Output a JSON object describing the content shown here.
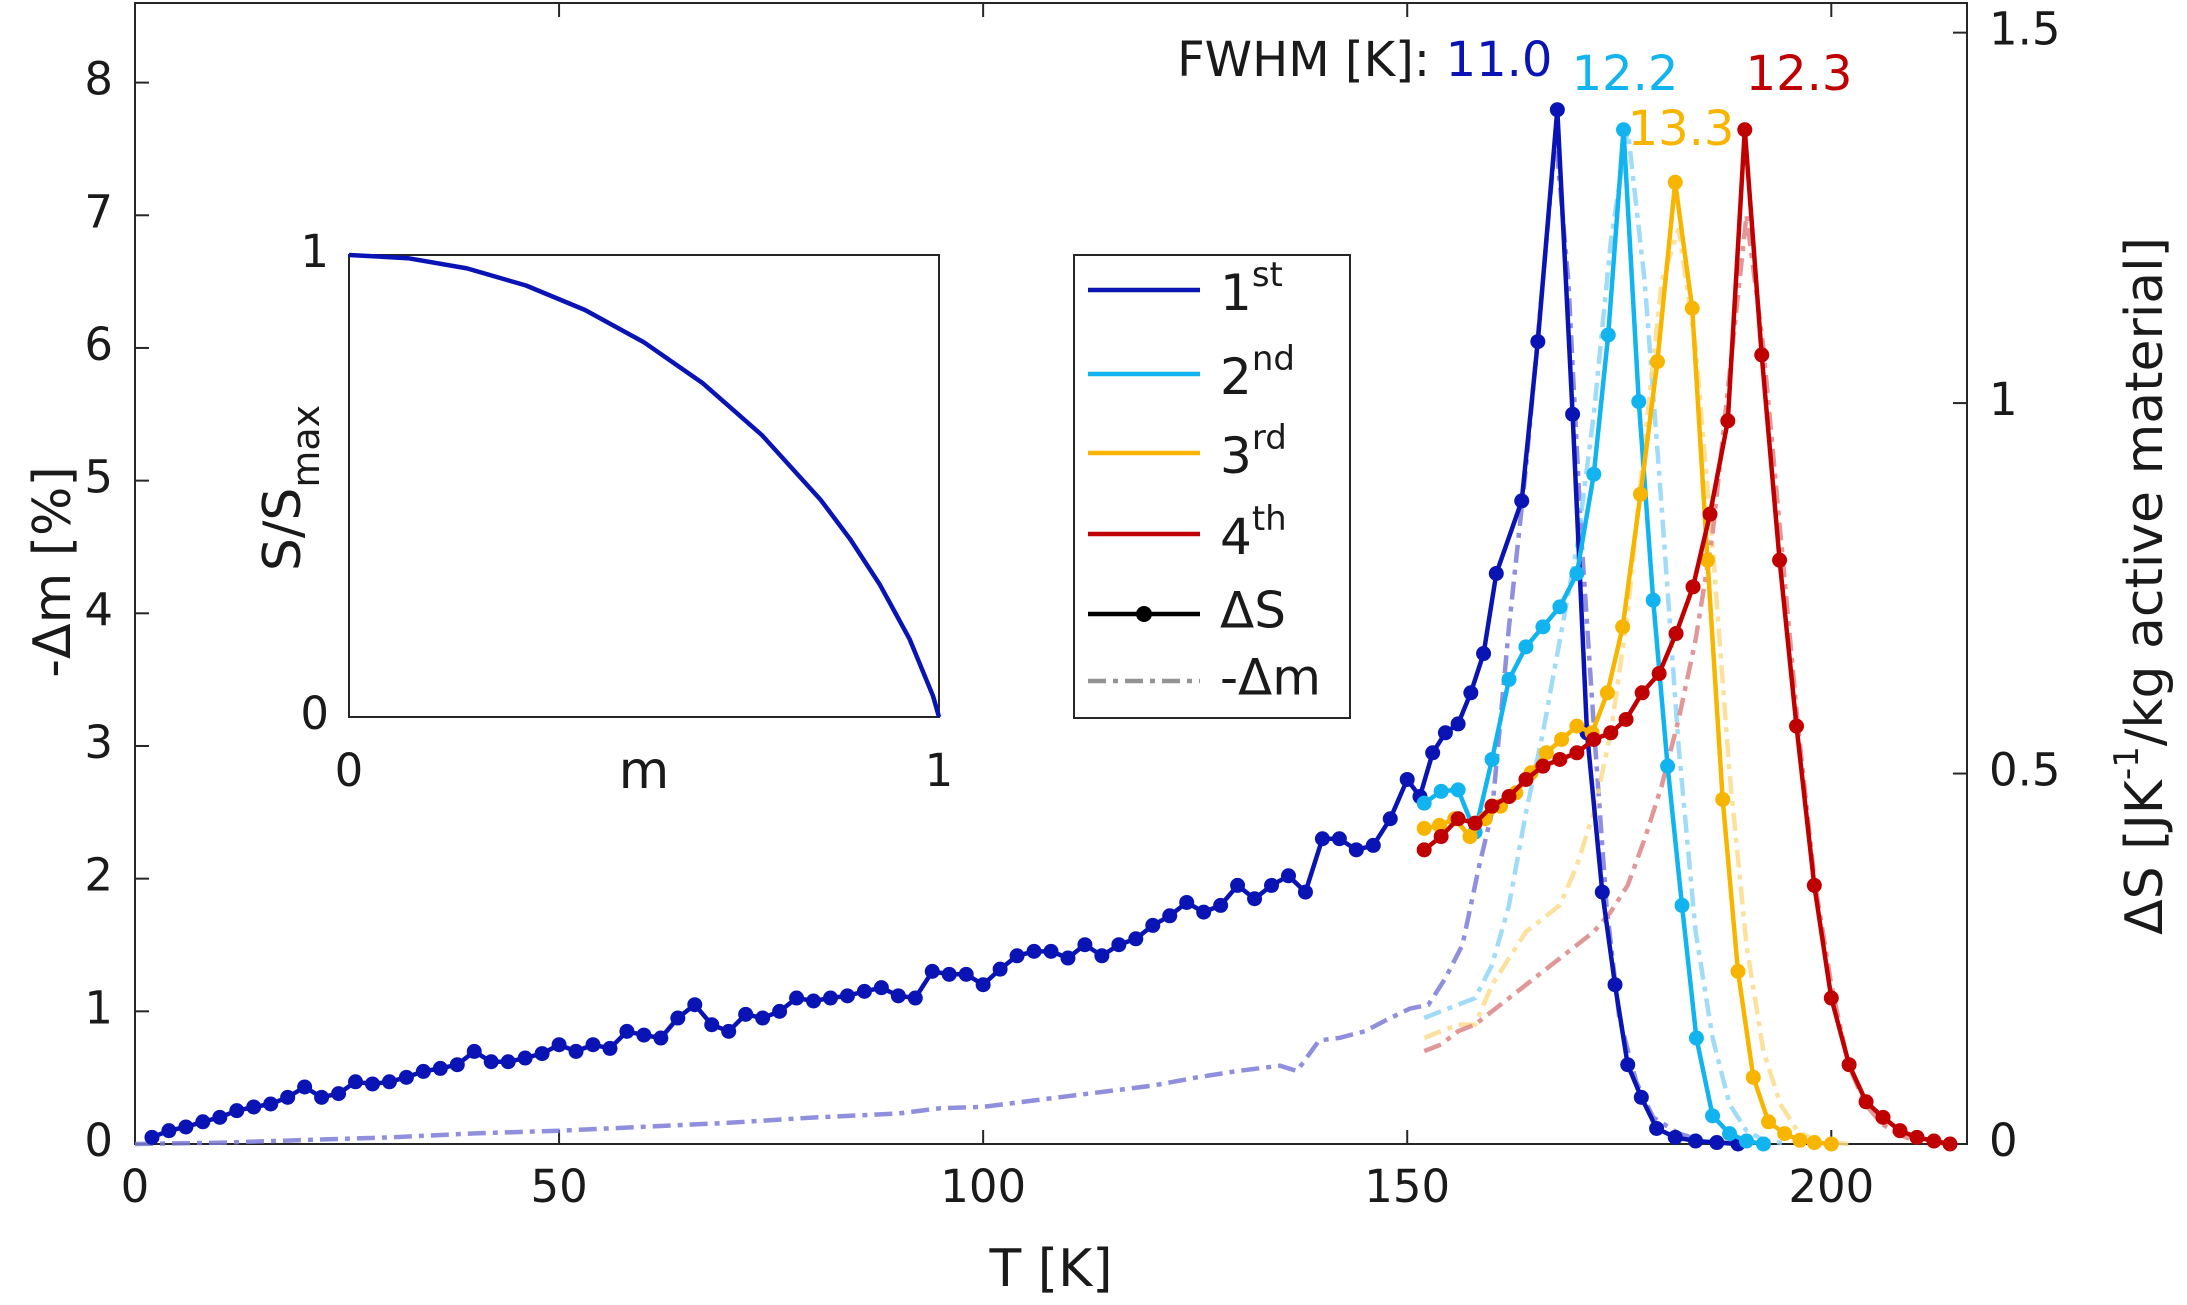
{
  "chart_data": {
    "type": "line",
    "xlabel": "T [K]",
    "ylabel": "-Δm [%]",
    "y2label": {
      "text": "ΔS [JK",
      "sup": "-1",
      "rest": "/kg active material]"
    },
    "xlim": [
      0,
      216
    ],
    "ylim": [
      0,
      8.6
    ],
    "y2lim": [
      0,
      1.54
    ],
    "xticks": [
      0,
      50,
      100,
      150,
      200
    ],
    "yticks": [
      0,
      1,
      2,
      3,
      4,
      5,
      6,
      7,
      8
    ],
    "y2ticks": [
      0,
      0.5,
      1,
      1.5
    ],
    "grid": false,
    "fwhm_title": "FWHM [K]:",
    "series": [
      {
        "name": "1st",
        "color": "#0a14b4",
        "axis": "y2",
        "fwhm": "11.0",
        "x": [
          2,
          4,
          6,
          8,
          10,
          12,
          14,
          16,
          18,
          20,
          22,
          24,
          26,
          28,
          30,
          32,
          34,
          36,
          38,
          40,
          42,
          44,
          46,
          48,
          50,
          52,
          54,
          56,
          58,
          60,
          62,
          64,
          66,
          68,
          70,
          72,
          74,
          76,
          78,
          80,
          82,
          84,
          86,
          88,
          90,
          92,
          94,
          96,
          98,
          100,
          102,
          104,
          106,
          108,
          110,
          112,
          114,
          116,
          118,
          120,
          122,
          124,
          126,
          128,
          130,
          132,
          134,
          136,
          138,
          140,
          142,
          144,
          146,
          148,
          150,
          151.5,
          153,
          154.5,
          156,
          157.5,
          159,
          160.5,
          163.5,
          165.4,
          167.7,
          169.5,
          171.2,
          173,
          174.5,
          176,
          177.6,
          179.4,
          181.6,
          184,
          186.5,
          189
        ],
        "values": [
          0.009,
          0.018,
          0.023,
          0.03,
          0.036,
          0.045,
          0.05,
          0.054,
          0.063,
          0.077,
          0.063,
          0.068,
          0.084,
          0.081,
          0.084,
          0.09,
          0.098,
          0.102,
          0.107,
          0.125,
          0.111,
          0.111,
          0.116,
          0.122,
          0.134,
          0.125,
          0.134,
          0.129,
          0.152,
          0.147,
          0.143,
          0.17,
          0.188,
          0.161,
          0.152,
          0.175,
          0.17,
          0.179,
          0.197,
          0.193,
          0.197,
          0.2,
          0.206,
          0.211,
          0.2,
          0.197,
          0.233,
          0.229,
          0.229,
          0.215,
          0.236,
          0.254,
          0.26,
          0.26,
          0.251,
          0.269,
          0.254,
          0.269,
          0.277,
          0.295,
          0.308,
          0.326,
          0.313,
          0.322,
          0.349,
          0.331,
          0.349,
          0.362,
          0.34,
          0.412,
          0.412,
          0.397,
          0.403,
          0.439,
          0.492,
          0.469,
          0.528,
          0.555,
          0.567,
          0.609,
          0.662,
          0.77,
          0.868,
          1.083,
          1.396,
          0.985,
          0.555,
          0.34,
          0.215,
          0.107,
          0.063,
          0.021,
          0.009,
          0.004,
          0.002,
          0
        ],
        "dm_color": "#7b7bd8",
        "dm_x": [
          0,
          10,
          20,
          30,
          40,
          50,
          60,
          70,
          80,
          90,
          95,
          100,
          105,
          110,
          115,
          120,
          125,
          130,
          135,
          137,
          139.6,
          142,
          145,
          148,
          150.3,
          152.5,
          154.5,
          156.5,
          158.5,
          160,
          162,
          164,
          166,
          167.5,
          169,
          170.5,
          172,
          173.5,
          175,
          177,
          179,
          182,
          185,
          190
        ],
        "dm_values": [
          0,
          0.01,
          0.03,
          0.05,
          0.08,
          0.1,
          0.13,
          0.16,
          0.2,
          0.23,
          0.27,
          0.28,
          0.32,
          0.36,
          0.4,
          0.44,
          0.5,
          0.55,
          0.59,
          0.55,
          0.78,
          0.8,
          0.85,
          0.95,
          1.02,
          1.05,
          1.25,
          1.5,
          2.1,
          2.5,
          3.9,
          5.1,
          6.5,
          7.6,
          6.5,
          4.6,
          3.15,
          1.8,
          0.95,
          0.47,
          0.2,
          0.08,
          0.02,
          0
        ]
      },
      {
        "name": "2nd",
        "color": "#12b4f0",
        "axis": "y2",
        "fwhm": "12.2",
        "x": [
          152,
          154,
          156,
          158,
          160,
          162,
          164,
          166,
          168,
          170,
          172,
          173.7,
          175.5,
          177.3,
          179,
          180.7,
          182.4,
          184.1,
          186,
          188,
          190,
          192
        ],
        "values": [
          0.46,
          0.476,
          0.478,
          0.421,
          0.519,
          0.627,
          0.671,
          0.698,
          0.725,
          0.77,
          0.904,
          1.092,
          1.369,
          1.002,
          0.734,
          0.51,
          0.322,
          0.143,
          0.038,
          0.014,
          0.004,
          0
        ],
        "dm_color": "#8fd6f6",
        "dm_x": [
          152,
          154,
          156,
          158,
          160,
          162,
          164,
          166,
          168,
          170,
          172,
          174,
          176,
          178,
          180,
          182,
          184,
          186,
          188,
          190,
          192,
          195
        ],
        "dm_values": [
          0.95,
          1.0,
          1.05,
          1.1,
          1.35,
          1.8,
          2.5,
          3.1,
          3.8,
          4.5,
          5.5,
          6.8,
          7.65,
          6.5,
          4.8,
          3.0,
          1.6,
          0.8,
          0.3,
          0.1,
          0.03,
          0
        ]
      },
      {
        "name": "3rd",
        "color": "#f7b500",
        "axis": "y2",
        "fwhm": "13.3",
        "x": [
          152,
          153.8,
          155.6,
          157.4,
          159.2,
          161,
          162.8,
          164.6,
          166.4,
          168.2,
          170,
          171.8,
          173.6,
          175.4,
          177.5,
          179.5,
          181.6,
          183.6,
          185.4,
          187.2,
          189,
          190.8,
          192.6,
          194.5,
          196.3,
          198,
          200
        ],
        "values": [
          0.426,
          0.43,
          0.439,
          0.415,
          0.439,
          0.456,
          0.474,
          0.501,
          0.528,
          0.546,
          0.564,
          0.555,
          0.609,
          0.698,
          0.877,
          1.056,
          1.298,
          1.128,
          0.788,
          0.465,
          0.233,
          0.09,
          0.03,
          0.014,
          0.005,
          0.002,
          0
        ],
        "dm_color": "#fbdc8c",
        "dm_x": [
          152,
          154,
          156,
          158,
          160,
          162,
          164,
          166,
          168,
          170,
          172,
          174,
          176,
          178,
          180,
          182,
          184,
          186,
          188,
          190,
          192,
          194,
          196,
          198,
          202
        ],
        "dm_values": [
          0.8,
          0.85,
          0.9,
          0.9,
          1.2,
          1.4,
          1.6,
          1.7,
          1.8,
          2.1,
          2.5,
          3.1,
          4.0,
          5.3,
          6.5,
          6.9,
          6.0,
          4.5,
          2.8,
          1.5,
          0.7,
          0.3,
          0.1,
          0.03,
          0
        ]
      },
      {
        "name": "4th",
        "color": "#c00000",
        "axis": "y2",
        "fwhm": "12.3",
        "x": [
          152,
          154,
          156,
          158,
          160,
          162,
          164,
          166,
          168,
          170,
          172,
          174,
          175.8,
          177.7,
          179.7,
          181.7,
          183.7,
          185.7,
          187.8,
          189.8,
          191.8,
          193.9,
          195.9,
          198,
          200,
          202.1,
          204.1,
          206.1,
          208.1,
          210.1,
          212.1,
          214
        ],
        "values": [
          0.397,
          0.415,
          0.439,
          0.433,
          0.456,
          0.469,
          0.492,
          0.51,
          0.519,
          0.528,
          0.546,
          0.555,
          0.573,
          0.609,
          0.635,
          0.689,
          0.752,
          0.85,
          0.976,
          1.369,
          1.065,
          0.788,
          0.564,
          0.349,
          0.197,
          0.107,
          0.057,
          0.036,
          0.018,
          0.009,
          0.004,
          0
        ],
        "dm_color": "#dc8585",
        "dm_x": [
          152,
          154,
          156,
          158,
          160,
          162,
          164,
          166,
          168,
          170,
          172,
          174,
          176,
          178,
          180,
          182,
          184,
          186,
          188,
          190,
          192,
          194,
          196,
          198,
          200,
          202,
          204,
          206,
          208,
          210,
          214
        ],
        "dm_values": [
          0.7,
          0.75,
          0.85,
          0.9,
          1.0,
          1.1,
          1.2,
          1.3,
          1.4,
          1.5,
          1.6,
          1.75,
          1.95,
          2.3,
          2.7,
          3.2,
          3.8,
          4.6,
          5.8,
          7.0,
          6.0,
          4.6,
          3.2,
          2.0,
          1.2,
          0.6,
          0.3,
          0.15,
          0.07,
          0.02,
          0
        ]
      }
    ],
    "style_legend": [
      {
        "label": "ΔS",
        "color": "#000000"
      },
      {
        "label": "-Δm",
        "color": "#808080"
      }
    ],
    "inset": {
      "type": "line",
      "xlabel": "m",
      "ylabel": {
        "text": "S/S",
        "sub": "max"
      },
      "color": "#0a14b4",
      "xlim": [
        0,
        1
      ],
      "ylim": [
        0,
        1
      ],
      "xticks": [
        0,
        1
      ],
      "yticks": [
        0,
        1
      ],
      "x": [
        0,
        0.1,
        0.2,
        0.3,
        0.4,
        0.5,
        0.6,
        0.7,
        0.8,
        0.85,
        0.9,
        0.95,
        0.99,
        1
      ],
      "values": [
        1,
        0.993,
        0.971,
        0.934,
        0.881,
        0.811,
        0.722,
        0.61,
        0.469,
        0.384,
        0.286,
        0.169,
        0.045,
        0
      ]
    }
  }
}
